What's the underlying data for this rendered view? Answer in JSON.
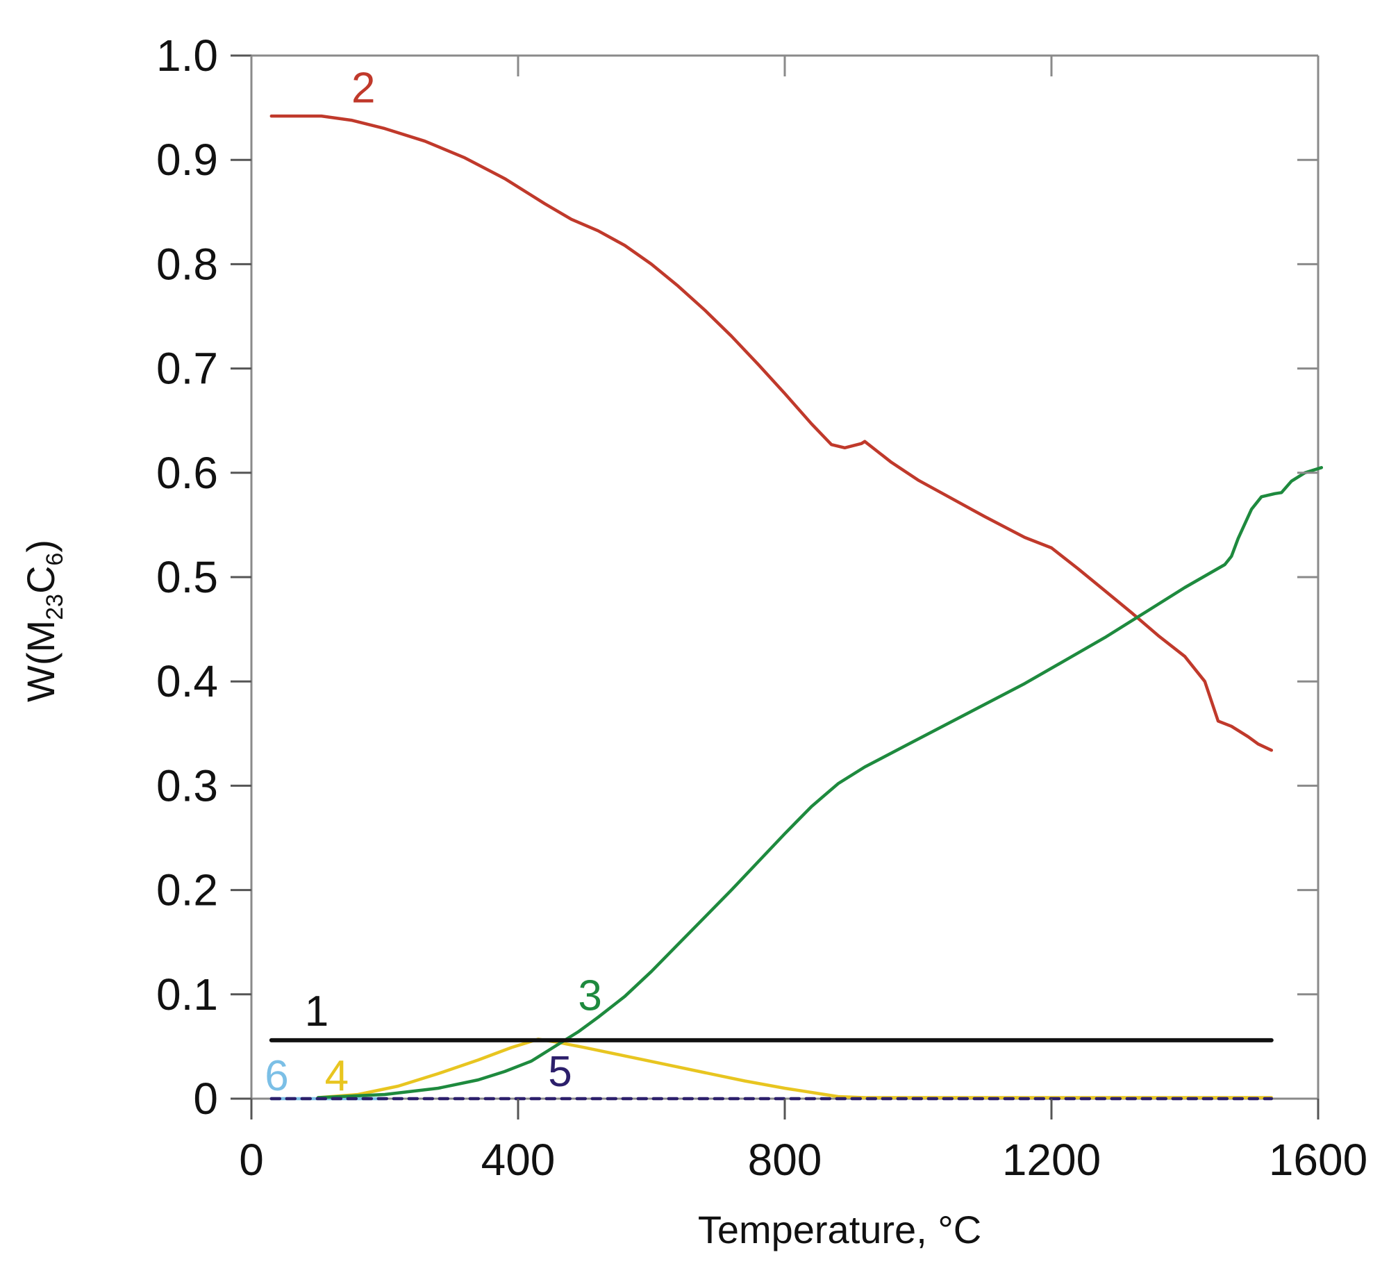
{
  "chart_data": {
    "type": "line",
    "title": "",
    "xlabel": "Temperature, °C",
    "ylabel_parts": {
      "prefix": "W(M",
      "sub1": "23",
      "mid": "C",
      "sub2": "6",
      "suffix": ")"
    },
    "xlim": [
      0,
      1600
    ],
    "ylim": [
      0,
      1.0
    ],
    "x_ticks": [
      0,
      400,
      800,
      1200,
      1600
    ],
    "x_tick_labels": [
      "0",
      "400",
      "800",
      "1200",
      "1600"
    ],
    "y_ticks": [
      0,
      0.1,
      0.2,
      0.3,
      0.4,
      0.5,
      0.6,
      0.7,
      0.8,
      0.9,
      1.0
    ],
    "y_tick_labels": [
      "0",
      "0.1",
      "0.2",
      "0.3",
      "0.4",
      "0.5",
      "0.6",
      "0.7",
      "0.8",
      "0.9",
      "1.0"
    ],
    "grid": false,
    "legend": "none",
    "series": [
      {
        "name": "1",
        "color": "#111111",
        "dash": false,
        "label_at": [
          80,
          0.07
        ],
        "points": [
          [
            30,
            0.056
          ],
          [
            1530,
            0.056
          ]
        ]
      },
      {
        "name": "2",
        "color": "#c0392b",
        "dash": false,
        "label_at": [
          150,
          0.955
        ],
        "points": [
          [
            30,
            0.942
          ],
          [
            105,
            0.942
          ],
          [
            150,
            0.938
          ],
          [
            200,
            0.93
          ],
          [
            260,
            0.918
          ],
          [
            320,
            0.902
          ],
          [
            380,
            0.882
          ],
          [
            440,
            0.858
          ],
          [
            480,
            0.843
          ],
          [
            520,
            0.832
          ],
          [
            560,
            0.818
          ],
          [
            600,
            0.8
          ],
          [
            640,
            0.779
          ],
          [
            680,
            0.756
          ],
          [
            720,
            0.731
          ],
          [
            760,
            0.704
          ],
          [
            800,
            0.676
          ],
          [
            840,
            0.647
          ],
          [
            870,
            0.627
          ],
          [
            890,
            0.624
          ],
          [
            915,
            0.628
          ],
          [
            920,
            0.63
          ],
          [
            960,
            0.61
          ],
          [
            1000,
            0.593
          ],
          [
            1040,
            0.579
          ],
          [
            1100,
            0.558
          ],
          [
            1160,
            0.538
          ],
          [
            1200,
            0.528
          ],
          [
            1240,
            0.508
          ],
          [
            1280,
            0.487
          ],
          [
            1320,
            0.466
          ],
          [
            1360,
            0.444
          ],
          [
            1400,
            0.424
          ],
          [
            1430,
            0.4
          ],
          [
            1450,
            0.362
          ],
          [
            1470,
            0.357
          ],
          [
            1495,
            0.347
          ],
          [
            1510,
            0.34
          ],
          [
            1530,
            0.334
          ]
        ]
      },
      {
        "name": "3",
        "color": "#1e8a3e",
        "dash": false,
        "label_at": [
          490,
          0.085
        ],
        "points": [
          [
            100,
            0.001
          ],
          [
            200,
            0.004
          ],
          [
            280,
            0.01
          ],
          [
            340,
            0.018
          ],
          [
            380,
            0.026
          ],
          [
            420,
            0.036
          ],
          [
            450,
            0.048
          ],
          [
            470,
            0.056
          ],
          [
            490,
            0.064
          ],
          [
            520,
            0.078
          ],
          [
            560,
            0.098
          ],
          [
            600,
            0.122
          ],
          [
            640,
            0.148
          ],
          [
            680,
            0.174
          ],
          [
            720,
            0.2
          ],
          [
            760,
            0.227
          ],
          [
            800,
            0.254
          ],
          [
            840,
            0.28
          ],
          [
            880,
            0.302
          ],
          [
            920,
            0.318
          ],
          [
            980,
            0.338
          ],
          [
            1040,
            0.358
          ],
          [
            1100,
            0.378
          ],
          [
            1160,
            0.398
          ],
          [
            1220,
            0.42
          ],
          [
            1280,
            0.442
          ],
          [
            1340,
            0.466
          ],
          [
            1400,
            0.49
          ],
          [
            1460,
            0.512
          ],
          [
            1470,
            0.52
          ],
          [
            1480,
            0.537
          ],
          [
            1500,
            0.565
          ],
          [
            1515,
            0.577
          ],
          [
            1535,
            0.58
          ],
          [
            1545,
            0.581
          ],
          [
            1560,
            0.592
          ],
          [
            1580,
            0.6
          ],
          [
            1605,
            0.605
          ]
        ]
      },
      {
        "name": "4",
        "color": "#e8c520",
        "dash": false,
        "label_at": [
          110,
          0.008
        ],
        "points": [
          [
            100,
            0.001
          ],
          [
            160,
            0.004
          ],
          [
            220,
            0.012
          ],
          [
            280,
            0.024
          ],
          [
            340,
            0.037
          ],
          [
            390,
            0.049
          ],
          [
            430,
            0.057
          ],
          [
            460,
            0.054
          ],
          [
            500,
            0.049
          ],
          [
            560,
            0.041
          ],
          [
            620,
            0.033
          ],
          [
            680,
            0.025
          ],
          [
            740,
            0.017
          ],
          [
            800,
            0.01
          ],
          [
            850,
            0.005
          ],
          [
            880,
            0.002
          ],
          [
            920,
            0.001
          ],
          [
            1000,
            0.001
          ],
          [
            1530,
            0.001
          ]
        ]
      },
      {
        "name": "5",
        "color": "#2c1f6b",
        "dash": true,
        "label_at": [
          445,
          0.012
        ],
        "points": [
          [
            30,
            0.0
          ],
          [
            1530,
            0.0
          ]
        ]
      },
      {
        "name": "6",
        "color": "#7bbfe6",
        "dash": false,
        "label_at": [
          20,
          0.008
        ],
        "points": [
          [
            30,
            0.0
          ],
          [
            200,
            0.0
          ]
        ]
      }
    ]
  }
}
